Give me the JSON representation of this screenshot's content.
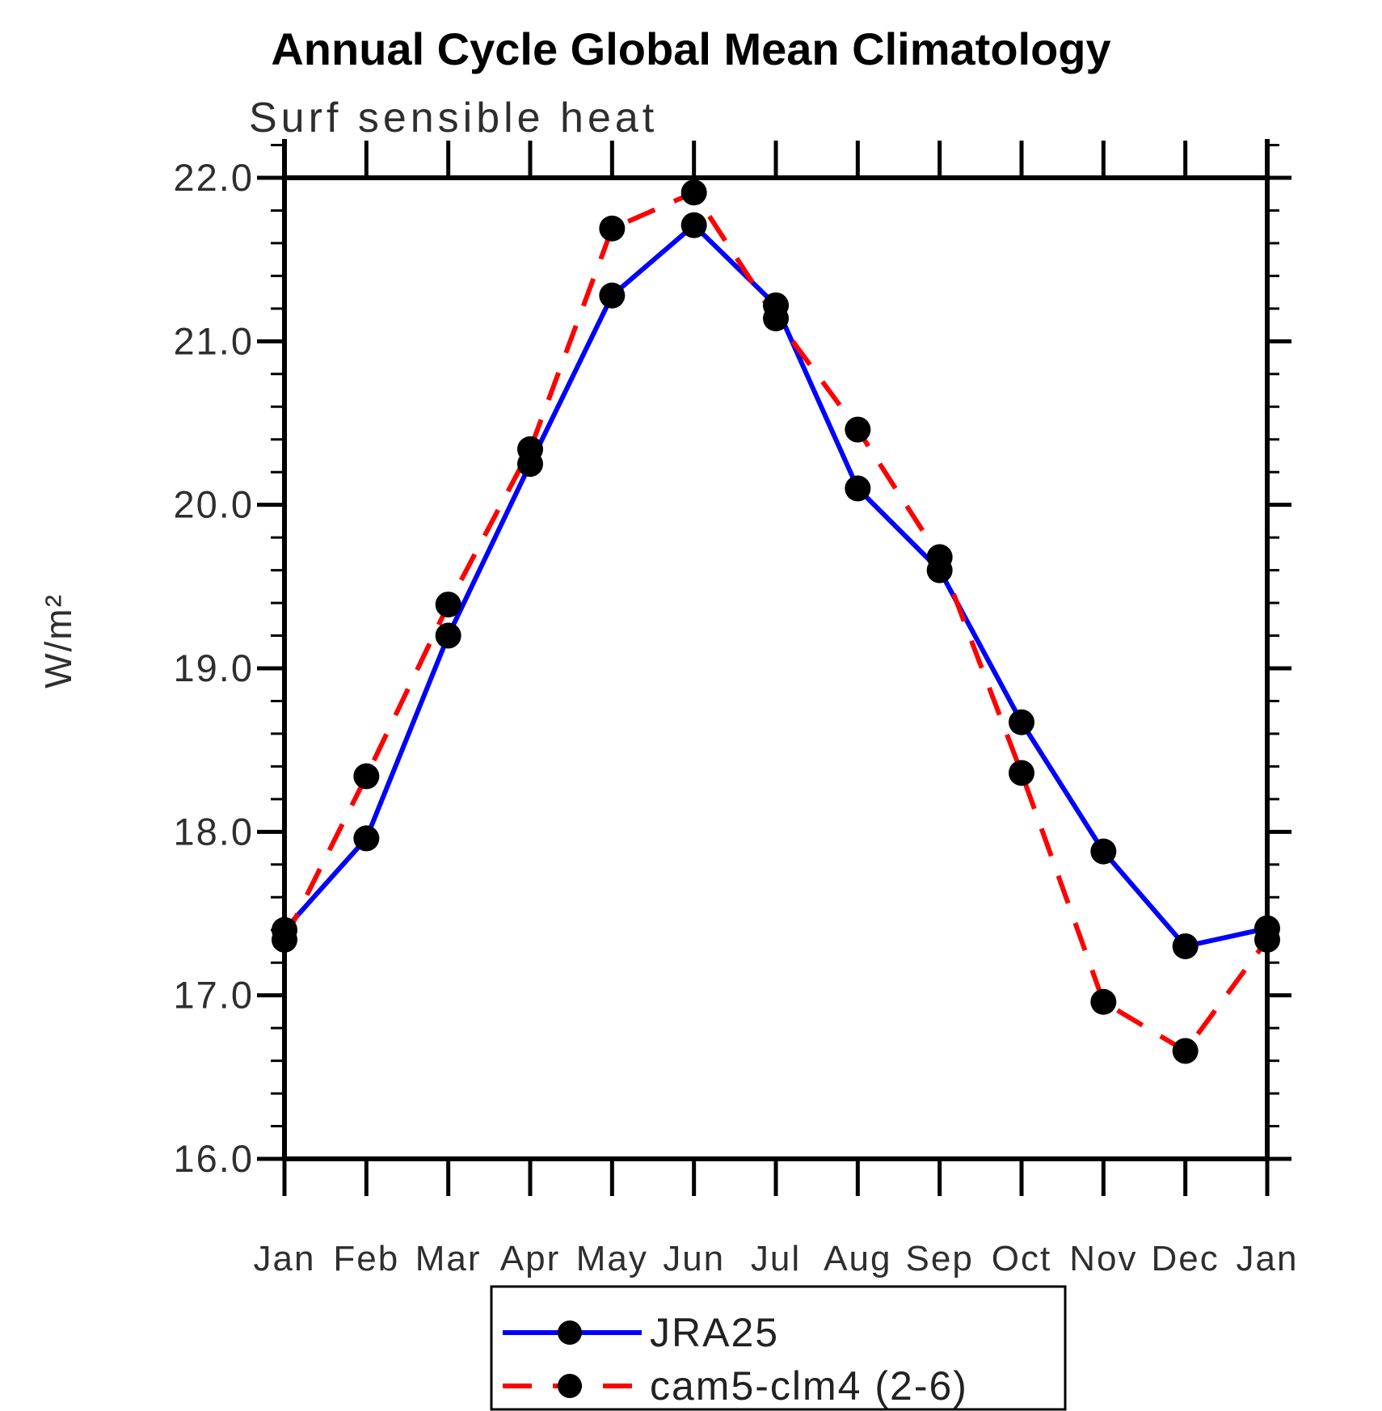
{
  "header": {
    "title": "Annual Cycle Global Mean Climatology"
  },
  "chart_data": {
    "type": "line",
    "title": "Annual Cycle Global Mean Climatology",
    "subtitle": "Surf sensible heat",
    "xlabel": "",
    "ylabel": "W/m²",
    "x_categories": [
      "Jan",
      "Feb",
      "Mar",
      "Apr",
      "May",
      "Jun",
      "Jul",
      "Aug",
      "Sep",
      "Oct",
      "Nov",
      "Dec",
      "Jan"
    ],
    "ylim": [
      16.0,
      22.0
    ],
    "ytick_step": 1.0,
    "ytick_labels": [
      "22.0",
      "21.0",
      "20.0",
      "19.0",
      "18.0",
      "17.0",
      "16.0"
    ],
    "yminor_step": 0.2,
    "grid": false,
    "frame": "box-with-outer-ticks",
    "legend_position": "bottom-center-boxed",
    "axis_color": "#000000",
    "tick_label_color": "#2e2e2e",
    "marker_color": "#000000",
    "series": [
      {
        "name": "JRA25",
        "color": "#0000ff",
        "style": "solid",
        "marker": "circle",
        "values": [
          17.4,
          17.96,
          19.2,
          20.25,
          21.28,
          21.71,
          21.22,
          20.1,
          19.6,
          18.67,
          17.88,
          17.3,
          17.41
        ]
      },
      {
        "name": "cam5-clm4 (2-6)",
        "color": "#ff0000",
        "style": "dashed",
        "marker": "circle",
        "values": [
          17.34,
          18.34,
          19.39,
          20.34,
          21.69,
          21.91,
          21.14,
          20.46,
          19.68,
          18.36,
          16.96,
          16.66,
          17.34
        ]
      }
    ]
  }
}
